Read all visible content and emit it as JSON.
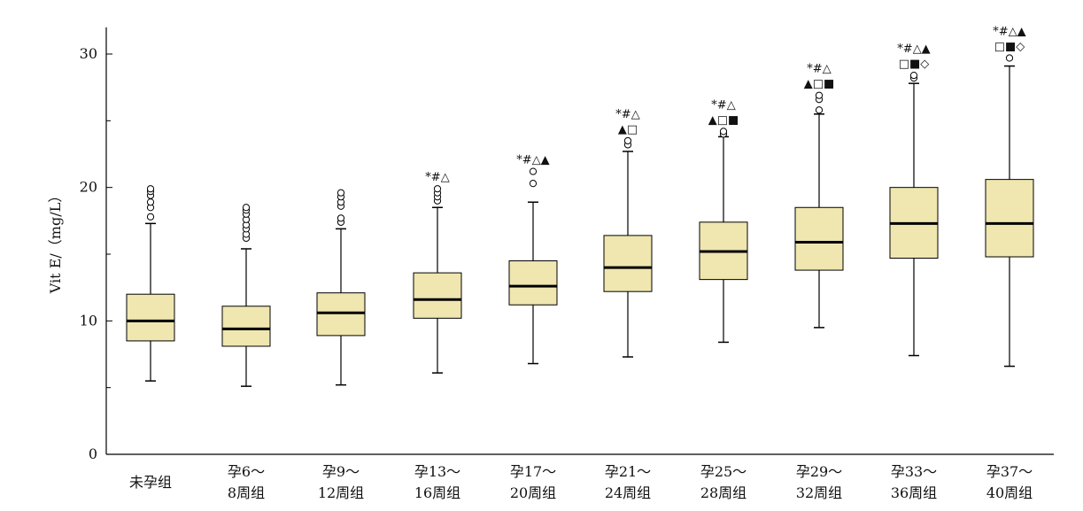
{
  "chart_data": {
    "type": "box",
    "ylabel": "Vit E/（mg/L）",
    "ylim": [
      0,
      32
    ],
    "yticks": [
      0,
      10,
      20,
      30
    ],
    "grid": false,
    "box_color": "#efe6b0",
    "categories": [
      {
        "line1": "未孕组",
        "line2": ""
      },
      {
        "line1": "孕6～",
        "line2": "8周组"
      },
      {
        "line1": "孕9～",
        "line2": "12周组"
      },
      {
        "line1": "孕13～",
        "line2": "16周组"
      },
      {
        "line1": "孕17～",
        "line2": "20周组"
      },
      {
        "line1": "孕21～",
        "line2": "24周组"
      },
      {
        "line1": "孕25～",
        "line2": "28周组"
      },
      {
        "line1": "孕29～",
        "line2": "32周组"
      },
      {
        "line1": "孕33～",
        "line2": "36周组"
      },
      {
        "line1": "孕37～",
        "line2": "40周组"
      }
    ],
    "boxes": [
      {
        "min": 5.5,
        "q1": 8.5,
        "median": 10.0,
        "q3": 12.0,
        "max": 17.3,
        "outliers": [
          17.8,
          18.5,
          18.9,
          19.4,
          19.7,
          19.9
        ],
        "sig": [
          "",
          ""
        ]
      },
      {
        "min": 5.1,
        "q1": 8.1,
        "median": 9.4,
        "q3": 11.1,
        "max": 15.4,
        "outliers": [
          16.2,
          16.5,
          16.9,
          17.2,
          17.6,
          18.0,
          18.3,
          18.5
        ],
        "sig": [
          "",
          ""
        ]
      },
      {
        "min": 5.2,
        "q1": 8.9,
        "median": 10.6,
        "q3": 12.1,
        "max": 16.9,
        "outliers": [
          17.4,
          17.7,
          18.6,
          18.9,
          19.3,
          19.6
        ],
        "sig": [
          "",
          ""
        ]
      },
      {
        "min": 6.1,
        "q1": 10.2,
        "median": 11.6,
        "q3": 13.6,
        "max": 18.5,
        "outliers": [
          19.0,
          19.3,
          19.6,
          19.9
        ],
        "sig": [
          "*#△",
          ""
        ]
      },
      {
        "min": 6.8,
        "q1": 11.2,
        "median": 12.6,
        "q3": 14.5,
        "max": 18.9,
        "outliers": [
          20.3,
          21.2
        ],
        "sig": [
          "*#△▲",
          ""
        ]
      },
      {
        "min": 7.3,
        "q1": 12.2,
        "median": 14.0,
        "q3": 16.4,
        "max": 22.7,
        "outliers": [
          23.2,
          23.5
        ],
        "sig": [
          "*#△",
          "▲□"
        ]
      },
      {
        "min": 8.4,
        "q1": 13.1,
        "median": 15.2,
        "q3": 17.4,
        "max": 23.8,
        "outliers": [
          24.0,
          24.2
        ],
        "sig": [
          "*#△",
          "▲□■"
        ]
      },
      {
        "min": 9.5,
        "q1": 13.8,
        "median": 15.9,
        "q3": 18.5,
        "max": 25.5,
        "outliers": [
          25.8,
          26.6,
          26.9
        ],
        "sig": [
          "*#△",
          "▲□■"
        ]
      },
      {
        "min": 7.4,
        "q1": 14.7,
        "median": 17.3,
        "q3": 20.0,
        "max": 27.8,
        "outliers": [
          28.2,
          28.4
        ],
        "sig": [
          "*#△▲",
          "□■◇"
        ]
      },
      {
        "min": 6.6,
        "q1": 14.8,
        "median": 17.3,
        "q3": 20.6,
        "max": 29.1,
        "outliers": [
          29.7
        ],
        "sig": [
          "*#△▲",
          "□■◇"
        ]
      }
    ]
  }
}
